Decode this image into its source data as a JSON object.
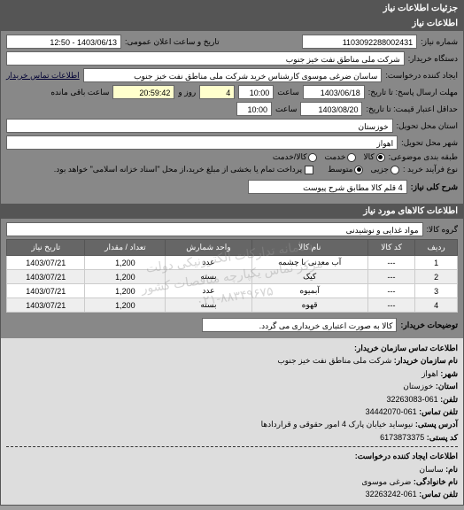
{
  "header": {
    "title": "جزئیات اطلاعات نیاز"
  },
  "need_info": {
    "title": "اطلاعات نیاز",
    "need_no_label": "شماره نیاز:",
    "need_no": "1103092288002431",
    "announce_dt_label": "تاریخ و ساعت اعلان عمومی:",
    "announce_dt": "1403/06/13 - 12:50",
    "buyer_org_label": "دستگاه خریدار:",
    "buyer_org": "شرکت ملی مناطق نفت خیز جنوب",
    "requester_label": "ایجاد کننده درخواست:",
    "requester": "ساسان ضرغی موسوی کارشناس خرید  شرکت ملی مناطق نفت خیز جنوب",
    "contact_link": "اطلاعات تماس خریدار",
    "deadline_label": "مهلت ارسال پاسخ: تا تاریخ:",
    "deadline_date": "1403/06/18",
    "time_label": "ساعت",
    "deadline_time": "10:00",
    "days_remain": "4",
    "days_remain_label": "روز و",
    "time_remain": "20:59:42",
    "time_remain_label": "ساعت باقی مانده",
    "validity_label": "حداقل اعتبار قیمت: تا تاریخ:",
    "validity_date": "1403/08/20",
    "validity_time": "10:00",
    "province_label": "استان محل تحویل:",
    "province": "خوزستان",
    "city_label": "شهر محل تحویل:",
    "city": "اهواز",
    "category_label": "طبقه بندی موضوعی:",
    "cat_opts": {
      "goods": "کالا",
      "service": "خدمت",
      "both": "کالا/خدمت"
    },
    "size_label": "نوع فرآیند خرید :",
    "size_opts": {
      "small": "جزیی",
      "medium": "متوسط"
    },
    "payment_note_checkbox": "پرداخت تمام یا بخشی از مبلغ خرید،از محل \"اسناد خزانه اسلامی\" خواهد بود.",
    "summary_label": "شرح کلی نیاز:",
    "summary": "4 قلم کالا مطابق شرح پیوست"
  },
  "items": {
    "title": "اطلاعات کالاهای مورد نیاز",
    "group_label": "گروه کالا:",
    "group": "مواد غذایی و نوشیدنی",
    "columns": [
      "ردیف",
      "کد کالا",
      "نام کالا",
      "واحد شمارش",
      "تعداد / مقدار",
      "تاریخ نیاز"
    ],
    "rows": [
      [
        "1",
        "---",
        "آب معدنی با چشمه",
        "عدد",
        "1,200",
        "1403/07/21"
      ],
      [
        "2",
        "---",
        "کیک",
        "بسته",
        "1,200",
        "1403/07/21"
      ],
      [
        "3",
        "---",
        "آبمیوه",
        "عدد",
        "1,200",
        "1403/07/21"
      ],
      [
        "4",
        "---",
        "قهوه",
        "بسته",
        "1,200",
        "1403/07/21"
      ]
    ],
    "watermark_lines": [
      "سامانه تدارکات الکترونیکی دولت",
      "مرکز تماس یکپارچه مناقصات کشور",
      "۰۲۱-۸۸۳۴۹۶۷۵"
    ],
    "buyer_note_label": "توضیحات خریدار:",
    "buyer_note": "کالا به صورت اعتباری خریداری می گردد."
  },
  "contact": {
    "title": "اطلاعات تماس سازمان خریدار:",
    "org_label": "نام سازمان خریدار:",
    "org": "شرکت ملی مناطق نفت خیز جنوب",
    "city_label": "شهر:",
    "city": "اهواز",
    "province_label": "استان:",
    "province": "خوزستان",
    "phone_label": "تلفن:",
    "phone": "061-32263083",
    "fax_label": "تلفن تماس:",
    "fax": "061-34442070",
    "addr_label": "آدرس پستی:",
    "addr": "نیوساید خیابان پارک 4 امور حقوقی و قراردادها",
    "post_label": "کد پستی:",
    "post": "6173873375",
    "creator_title": "اطلاعات ایجاد کننده درخواست:",
    "fname_label": "نام:",
    "fname": "ساسان",
    "lname_label": "نام خانوادگی:",
    "lname": "ضرغی موسوی",
    "cphone_label": "تلفن تماس:",
    "cphone": "061-32263242"
  }
}
